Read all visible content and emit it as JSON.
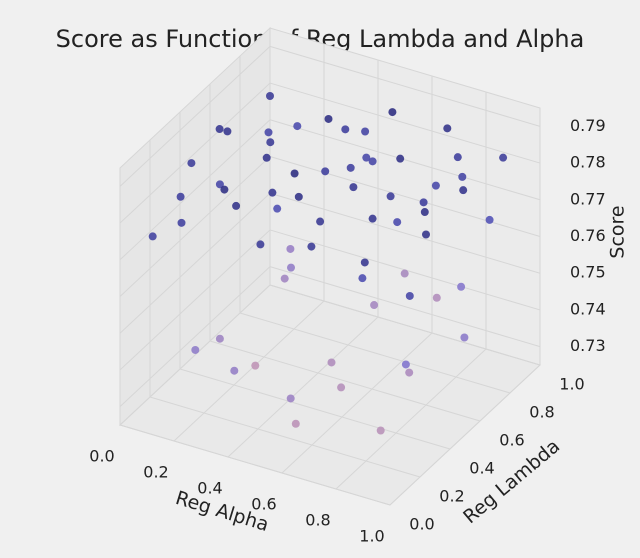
{
  "chart_data": {
    "type": "scatter3d",
    "title": "Score as Function of Reg Lambda and Alpha",
    "xlabel": "Reg Alpha",
    "ylabel": "Reg Lambda",
    "zlabel": "Score",
    "x": [
      0.05,
      0.12,
      0.21,
      0.33,
      0.41,
      0.52,
      0.63,
      0.71,
      0.84,
      0.93,
      0.08,
      0.17,
      0.26,
      0.38,
      0.47,
      0.55,
      0.66,
      0.77,
      0.88,
      0.97,
      0.03,
      0.15,
      0.29,
      0.35,
      0.44,
      0.58,
      0.61,
      0.74,
      0.81,
      0.95,
      0.1,
      0.19,
      0.24,
      0.31,
      0.49,
      0.53,
      0.68,
      0.79,
      0.86,
      0.91,
      0.02,
      0.14,
      0.27,
      0.39,
      0.46,
      0.57,
      0.64,
      0.73,
      0.83,
      0.99,
      0.07,
      0.22,
      0.34,
      0.43,
      0.51,
      0.62,
      0.72,
      0.89,
      0.11,
      0.25,
      0.37,
      0.48,
      0.59,
      0.69,
      0.78,
      0.92
    ],
    "y": [
      0.91,
      0.45,
      0.72,
      0.18,
      0.63,
      0.88,
      0.34,
      0.57,
      0.12,
      0.79,
      0.26,
      0.83,
      0.51,
      0.95,
      0.09,
      0.42,
      0.68,
      0.23,
      0.97,
      0.55,
      0.61,
      0.14,
      0.38,
      0.76,
      0.85,
      0.29,
      0.04,
      0.92,
      0.47,
      0.33,
      0.81,
      0.66,
      0.07,
      0.49,
      0.31,
      0.74,
      0.58,
      0.86,
      0.19,
      0.65,
      0.44,
      0.93,
      0.21,
      0.06,
      0.71,
      0.53,
      0.96,
      0.37,
      0.78,
      0.15,
      0.59,
      0.27,
      0.89,
      0.39,
      0.98,
      0.16,
      0.81,
      0.43,
      0.02,
      0.69,
      0.35,
      0.82,
      0.11,
      0.94,
      0.62,
      0.25
    ],
    "z": [
      0.781,
      0.776,
      0.742,
      0.785,
      0.779,
      0.788,
      0.736,
      0.774,
      0.783,
      0.771,
      0.779,
      0.745,
      0.784,
      0.777,
      0.781,
      0.738,
      0.786,
      0.773,
      0.78,
      0.749,
      0.783,
      0.778,
      0.733,
      0.787,
      0.775,
      0.782,
      0.744,
      0.779,
      0.739,
      0.785,
      0.776,
      0.781,
      0.748,
      0.772,
      0.786,
      0.741,
      0.78,
      0.777,
      0.735,
      0.784,
      0.78,
      0.774,
      0.787,
      0.746,
      0.778,
      0.782,
      0.737,
      0.783,
      0.751,
      0.776,
      0.784,
      0.743,
      0.779,
      0.788,
      0.74,
      0.781,
      0.775,
      0.786,
      0.778,
      0.747,
      0.783,
      0.776,
      0.734,
      0.785,
      0.779,
      0.752
    ],
    "colors": [
      "#d9a3ad",
      "#6a6ad8",
      "#23236e"
    ],
    "xlim": [
      0,
      1
    ],
    "ylim": [
      0,
      1
    ],
    "zlim": [
      0.725,
      0.795
    ],
    "xticks": [
      {
        "value": 0,
        "label": "0.0"
      },
      0.2,
      0.4,
      0.6,
      0.8,
      {
        "value": 1,
        "label": "1.0"
      }
    ],
    "yticks": [
      {
        "value": 0,
        "label": "0.0"
      },
      0.2,
      0.4,
      0.6,
      0.8,
      {
        "value": 1,
        "label": "1.0"
      }
    ],
    "zticks": [
      0.73,
      0.74,
      0.75,
      0.76,
      0.77,
      0.78,
      0.79
    ],
    "grid": true
  }
}
